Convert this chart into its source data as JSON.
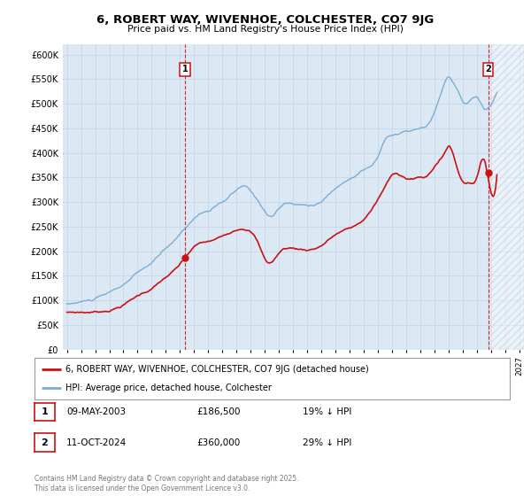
{
  "title": "6, ROBERT WAY, WIVENHOE, COLCHESTER, CO7 9JG",
  "subtitle": "Price paid vs. HM Land Registry's House Price Index (HPI)",
  "bg_color": "#ffffff",
  "grid_color": "#c8daea",
  "plot_bg": "#dce9f5",
  "hpi_color": "#7aadd4",
  "price_color": "#cc1111",
  "legend_label_price": "6, ROBERT WAY, WIVENHOE, COLCHESTER, CO7 9JG (detached house)",
  "legend_label_hpi": "HPI: Average price, detached house, Colchester",
  "footnote": "Contains HM Land Registry data © Crown copyright and database right 2025.\nThis data is licensed under the Open Government Licence v3.0.",
  "ylim": [
    0,
    620000
  ],
  "yticks": [
    0,
    50000,
    100000,
    150000,
    200000,
    250000,
    300000,
    350000,
    400000,
    450000,
    500000,
    550000,
    600000
  ],
  "sale1_label": "09-MAY-2003",
  "sale1_price": "£186,500",
  "sale1_note": "19% ↓ HPI",
  "sale2_label": "11-OCT-2024",
  "sale2_price": "£360,000",
  "sale2_note": "29% ↓ HPI",
  "sale1_x": 2003.36,
  "sale1_y": 186500,
  "sale2_x": 2024.79,
  "sale2_y": 360000,
  "xmin": 1994.7,
  "xmax": 2027.3
}
